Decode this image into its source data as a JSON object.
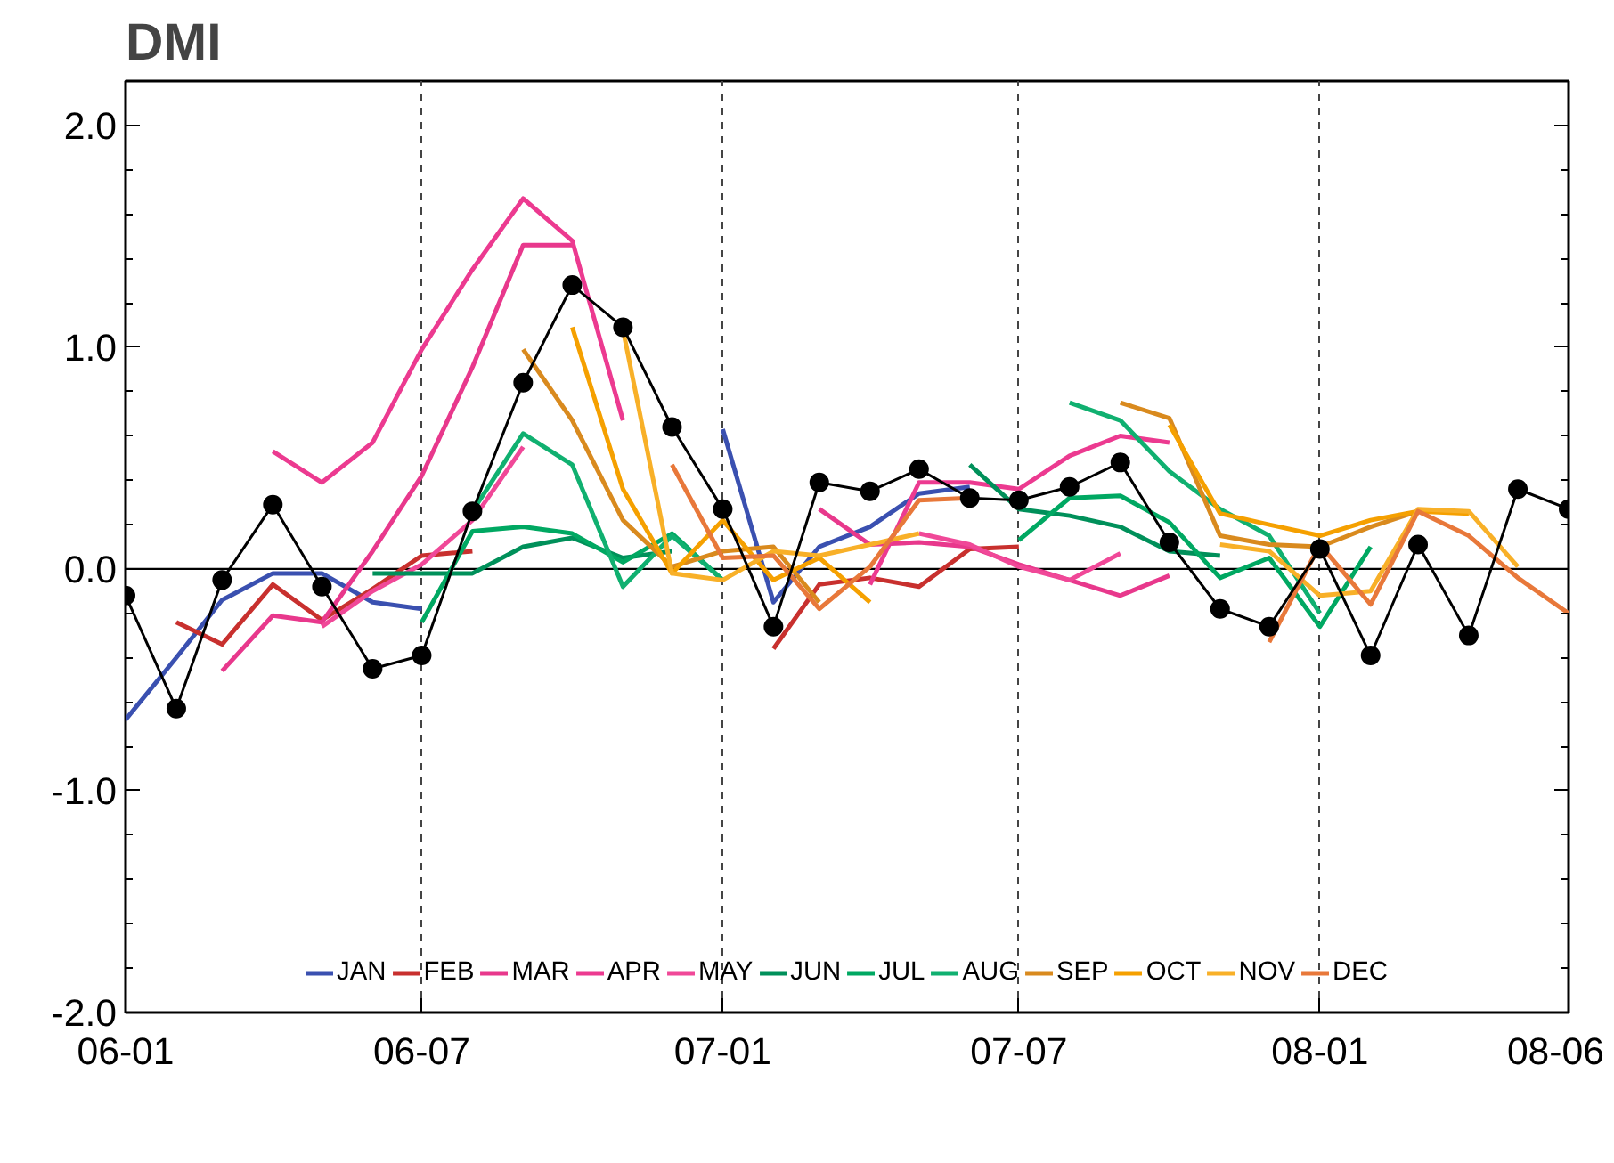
{
  "chart_data": {
    "type": "line",
    "title": "DMI",
    "x": [
      "2006-01",
      "2006-02",
      "2006-03",
      "2006-04",
      "2006-05",
      "2006-06",
      "2006-07",
      "2006-08",
      "2006-09",
      "2006-10",
      "2006-11",
      "2006-12",
      "2007-01",
      "2007-02",
      "2007-03",
      "2007-04",
      "2007-05",
      "2007-06",
      "2007-07",
      "2007-08",
      "2007-09",
      "2007-10",
      "2007-11",
      "2007-12",
      "2008-01",
      "2008-02",
      "2008-03",
      "2008-04",
      "2008-05",
      "2008-06"
    ],
    "xlim": [
      "2006-01",
      "2008-06"
    ],
    "xticks": [
      {
        "value": "2006-01",
        "label": "06-01"
      },
      {
        "value": "2006-07",
        "label": "06-07"
      },
      {
        "value": "2007-01",
        "label": "07-01"
      },
      {
        "value": "2007-07",
        "label": "07-07"
      },
      {
        "value": "2008-01",
        "label": "08-01"
      },
      {
        "value": "2008-06",
        "label": "08-06"
      }
    ],
    "ylim": [
      -2,
      2.2
    ],
    "yticks": [
      {
        "value": -2,
        "label": "-2.0"
      },
      {
        "value": -1,
        "label": "-1.0"
      },
      {
        "value": 0,
        "label": "0.0"
      },
      {
        "value": 1,
        "label": "1.0"
      },
      {
        "value": 2,
        "label": "2.0"
      }
    ],
    "grid": "x",
    "legend": "bottom",
    "line_style": "solid",
    "ref_lines": [
      {
        "axis": "y",
        "value": 0,
        "color": "#000000"
      }
    ],
    "series": [
      {
        "name": "JAN",
        "color": "#3a50b0",
        "values": [
          -0.68,
          -0.4,
          -0.14,
          -0.02,
          -0.02,
          -0.15,
          -0.18,
          null,
          null,
          null,
          null,
          null,
          0.63,
          -0.15,
          0.1,
          0.19,
          0.34,
          0.37,
          null,
          null,
          null,
          null,
          null,
          null,
          null,
          null,
          null,
          null,
          null,
          null
        ]
      },
      {
        "name": "FEB",
        "color": "#c8302e",
        "values": [
          null,
          -0.24,
          -0.34,
          -0.07,
          -0.23,
          -0.09,
          0.06,
          0.08,
          null,
          null,
          null,
          null,
          null,
          -0.36,
          -0.07,
          -0.04,
          -0.08,
          0.09,
          0.1,
          null,
          null,
          null,
          null,
          null,
          null,
          null,
          null,
          null,
          null,
          null
        ]
      },
      {
        "name": "MAR",
        "color": "#e8388c",
        "values": [
          null,
          null,
          -0.46,
          -0.21,
          -0.24,
          0.08,
          0.42,
          0.91,
          1.46,
          1.46,
          null,
          null,
          null,
          null,
          0.27,
          0.11,
          0.12,
          0.1,
          0.02,
          -0.05,
          -0.12,
          -0.03,
          null,
          null,
          null,
          null,
          null,
          null,
          null,
          null
        ]
      },
      {
        "name": "APR",
        "color": "#ec3a90",
        "values": [
          null,
          null,
          null,
          0.53,
          0.39,
          0.57,
          0.99,
          1.35,
          1.67,
          1.48,
          0.67,
          null,
          null,
          null,
          null,
          -0.07,
          0.39,
          0.39,
          0.36,
          0.51,
          0.6,
          0.57,
          null,
          null,
          null,
          null,
          null,
          null,
          null,
          null
        ]
      },
      {
        "name": "MAY",
        "color": "#f04898",
        "values": [
          null,
          null,
          null,
          null,
          -0.26,
          -0.1,
          0.02,
          0.22,
          0.55,
          null,
          null,
          null,
          null,
          null,
          null,
          null,
          0.16,
          0.11,
          0.01,
          -0.05,
          0.07,
          null,
          null,
          null,
          null,
          null,
          null,
          null,
          null,
          null
        ]
      },
      {
        "name": "JUN",
        "color": "#00905a",
        "values": [
          null,
          null,
          null,
          null,
          null,
          -0.02,
          -0.02,
          -0.02,
          0.1,
          0.14,
          0.05,
          0.08,
          null,
          null,
          null,
          null,
          null,
          0.47,
          0.27,
          0.24,
          0.19,
          0.08,
          0.06,
          null,
          null,
          null,
          null,
          null,
          null,
          null
        ]
      },
      {
        "name": "JUL",
        "color": "#00a862",
        "values": [
          null,
          null,
          null,
          null,
          null,
          null,
          -0.24,
          0.17,
          0.19,
          0.16,
          0.03,
          0.16,
          -0.05,
          null,
          null,
          null,
          null,
          null,
          0.13,
          0.32,
          0.33,
          0.21,
          -0.04,
          0.05,
          -0.26,
          0.1,
          null,
          null,
          null,
          null
        ]
      },
      {
        "name": "AUG",
        "color": "#10b070",
        "values": [
          null,
          null,
          null,
          null,
          null,
          null,
          null,
          0.26,
          0.61,
          0.47,
          -0.08,
          0.15,
          -0.05,
          null,
          null,
          null,
          null,
          null,
          null,
          0.75,
          0.67,
          0.44,
          0.27,
          0.15,
          -0.2,
          null,
          null,
          null,
          null,
          null
        ]
      },
      {
        "name": "SEP",
        "color": "#d98a1e",
        "values": [
          null,
          null,
          null,
          null,
          null,
          null,
          null,
          null,
          0.99,
          0.67,
          0.22,
          0.01,
          0.08,
          0.1,
          -0.15,
          null,
          null,
          null,
          null,
          null,
          0.75,
          0.68,
          0.15,
          0.11,
          0.1,
          0.19,
          0.26,
          null,
          null,
          null
        ]
      },
      {
        "name": "OCT",
        "color": "#f5a000",
        "values": [
          null,
          null,
          null,
          null,
          null,
          null,
          null,
          null,
          null,
          1.09,
          0.36,
          -0.02,
          0.22,
          -0.05,
          0.05,
          -0.15,
          null,
          null,
          null,
          null,
          null,
          0.65,
          0.25,
          0.2,
          0.15,
          0.22,
          0.26,
          0.25,
          null,
          null
        ]
      },
      {
        "name": "NOV",
        "color": "#f8b028",
        "values": [
          null,
          null,
          null,
          null,
          null,
          null,
          null,
          null,
          null,
          null,
          1.08,
          -0.02,
          -0.05,
          0.08,
          0.06,
          0.11,
          0.16,
          null,
          null,
          null,
          null,
          null,
          0.11,
          0.08,
          -0.12,
          -0.1,
          0.27,
          0.26,
          0.01,
          null
        ]
      },
      {
        "name": "DEC",
        "color": "#e8783a",
        "values": [
          null,
          null,
          null,
          null,
          null,
          null,
          null,
          null,
          null,
          null,
          null,
          0.47,
          0.05,
          0.06,
          -0.18,
          0.01,
          0.31,
          0.32,
          null,
          null,
          null,
          null,
          null,
          -0.33,
          0.11,
          -0.16,
          0.26,
          0.15,
          -0.04,
          -0.2
        ]
      },
      {
        "color": "#000000",
        "marker": "circle",
        "values": [
          -0.12,
          -0.63,
          -0.05,
          0.29,
          -0.08,
          -0.45,
          -0.39,
          0.26,
          0.84,
          1.28,
          1.09,
          0.64,
          0.27,
          -0.26,
          0.39,
          0.35,
          0.45,
          0.32,
          0.31,
          0.37,
          0.48,
          0.12,
          -0.18,
          -0.26,
          0.09,
          -0.39,
          0.11,
          -0.3,
          0.36,
          0.27
        ]
      }
    ]
  }
}
